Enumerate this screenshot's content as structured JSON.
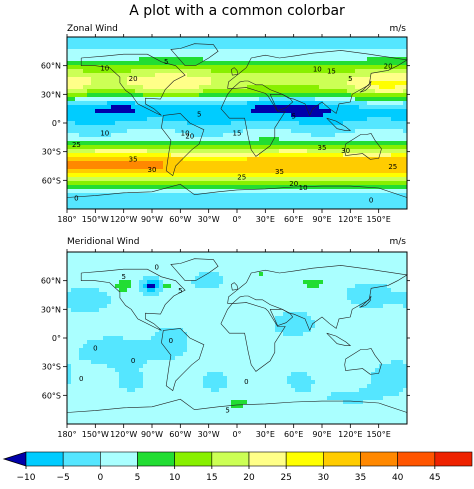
{
  "title": "A plot with a common colorbar",
  "chart_data": [
    {
      "type": "heatmap",
      "panel": "top",
      "left_label": "Zonal Wind",
      "right_label": "m/s",
      "x_ticks": [
        "180°",
        "150°W",
        "120°W",
        "90°W",
        "60°W",
        "30°W",
        "0°",
        "30°E",
        "60°E",
        "90°E",
        "120°E",
        "150°E"
      ],
      "x_values": [
        -180,
        -150,
        -120,
        -90,
        -60,
        -30,
        0,
        30,
        60,
        90,
        120,
        150
      ],
      "xlim": [
        -180,
        180
      ],
      "y_ticks": [
        "60°N",
        "30°N",
        "0°",
        "30°S",
        "60°S"
      ],
      "y_values": [
        60,
        30,
        0,
        -30,
        -60
      ],
      "ylim": [
        -90,
        90
      ],
      "contour_labels": [
        {
          "text": "5",
          "lon": -75,
          "lat": 65
        },
        {
          "text": "10",
          "lon": -140,
          "lat": 58
        },
        {
          "text": "20",
          "lon": -110,
          "lat": 47
        },
        {
          "text": "15",
          "lon": 100,
          "lat": 55
        },
        {
          "text": "20",
          "lon": 160,
          "lat": 60
        },
        {
          "text": "10",
          "lon": 85,
          "lat": 57
        },
        {
          "text": "5",
          "lon": 120,
          "lat": 47
        },
        {
          "text": "5",
          "lon": -40,
          "lat": 10
        },
        {
          "text": "10",
          "lon": -55,
          "lat": -10
        },
        {
          "text": "5",
          "lon": 60,
          "lat": 8
        },
        {
          "text": "20",
          "lon": -50,
          "lat": -13
        },
        {
          "text": "15",
          "lon": 0,
          "lat": -10
        },
        {
          "text": "10",
          "lon": -140,
          "lat": -10
        },
        {
          "text": "25",
          "lon": -170,
          "lat": -22
        },
        {
          "text": "35",
          "lon": -110,
          "lat": -37
        },
        {
          "text": "30",
          "lon": -90,
          "lat": -48
        },
        {
          "text": "35",
          "lon": 90,
          "lat": -25
        },
        {
          "text": "30",
          "lon": 115,
          "lat": -28
        },
        {
          "text": "35",
          "lon": 45,
          "lat": -50
        },
        {
          "text": "25",
          "lon": 5,
          "lat": -56
        },
        {
          "text": "20",
          "lon": 60,
          "lat": -63
        },
        {
          "text": "10",
          "lon": 70,
          "lat": -67
        },
        {
          "text": "0",
          "lon": 142,
          "lat": -80
        },
        {
          "text": "25",
          "lon": 165,
          "lat": -45
        },
        {
          "text": "0",
          "lon": -170,
          "lat": -78
        }
      ]
    },
    {
      "type": "heatmap",
      "panel": "bottom",
      "left_label": "Meridional Wind",
      "right_label": "m/s",
      "x_ticks": [
        "180°",
        "150°W",
        "120°W",
        "90°W",
        "60°W",
        "30°W",
        "0°",
        "30°E",
        "60°E",
        "90°E",
        "120°E",
        "150°E"
      ],
      "x_values": [
        -180,
        -150,
        -120,
        -90,
        -60,
        -30,
        0,
        30,
        60,
        90,
        120,
        150
      ],
      "xlim": [
        -180,
        180
      ],
      "y_ticks": [
        "60°N",
        "30°N",
        "0°",
        "30°S",
        "60°S"
      ],
      "y_values": [
        60,
        30,
        0,
        -30,
        -60
      ],
      "ylim": [
        -90,
        90
      ],
      "contour_labels": [
        {
          "text": "5",
          "lon": -120,
          "lat": 65
        },
        {
          "text": "0",
          "lon": -85,
          "lat": 75
        },
        {
          "text": "5",
          "lon": -60,
          "lat": 50
        },
        {
          "text": "0",
          "lon": -70,
          "lat": -2
        },
        {
          "text": "0",
          "lon": -150,
          "lat": -10
        },
        {
          "text": "0",
          "lon": -110,
          "lat": -23
        },
        {
          "text": "0",
          "lon": -165,
          "lat": -42
        },
        {
          "text": "0",
          "lon": 10,
          "lat": -45
        },
        {
          "text": "5",
          "lon": -10,
          "lat": -75
        }
      ]
    }
  ],
  "colorbar": {
    "orientation": "horizontal",
    "extend": "min",
    "tick_labels": [
      "−10",
      "−5",
      "0",
      "5",
      "10",
      "15",
      "20",
      "25",
      "30",
      "35",
      "40",
      "45"
    ],
    "tick_values": [
      -10,
      -5,
      0,
      5,
      10,
      15,
      20,
      25,
      30,
      35,
      40,
      45
    ],
    "bins": [
      {
        "from": -15,
        "to": -10,
        "color": "#0000aa"
      },
      {
        "from": -10,
        "to": -5,
        "color": "#00ccff"
      },
      {
        "from": -5,
        "to": 0,
        "color": "#55e6ff"
      },
      {
        "from": 0,
        "to": 5,
        "color": "#aaffff"
      },
      {
        "from": 5,
        "to": 10,
        "color": "#22dd33"
      },
      {
        "from": 10,
        "to": 15,
        "color": "#88f000"
      },
      {
        "from": 15,
        "to": 20,
        "color": "#ccff55"
      },
      {
        "from": 20,
        "to": 25,
        "color": "#ffff88"
      },
      {
        "from": 25,
        "to": 30,
        "color": "#ffff00"
      },
      {
        "from": 30,
        "to": 35,
        "color": "#ffcc00"
      },
      {
        "from": 35,
        "to": 40,
        "color": "#ff8800"
      },
      {
        "from": 40,
        "to": 45,
        "color": "#ff5500"
      },
      {
        "from": 45,
        "to": 50,
        "color": "#ee2200"
      }
    ]
  }
}
